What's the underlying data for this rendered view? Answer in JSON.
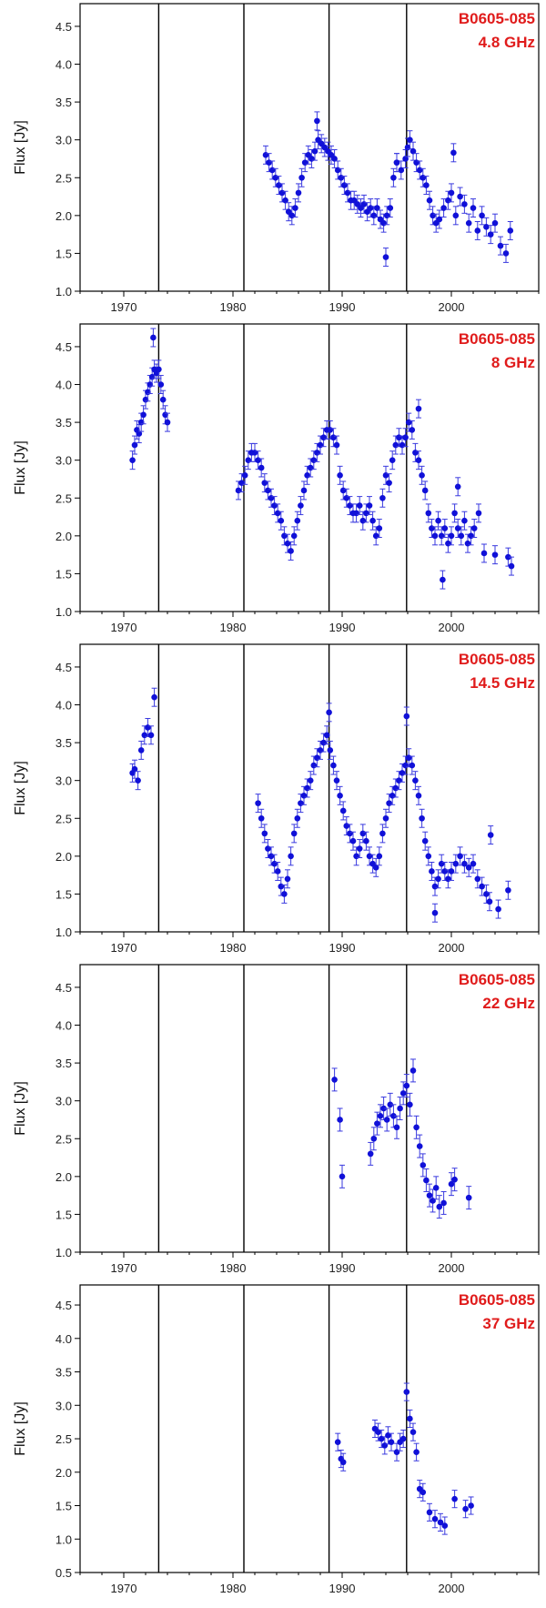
{
  "chart_data": [
    {
      "type": "scatter",
      "title": "B0605-085",
      "subtitle": "4.8 GHz",
      "ylabel": "Flux [Jy]",
      "xlim": [
        1966,
        2008
      ],
      "ylim": [
        1.0,
        4.8
      ],
      "yticks": [
        1.0,
        1.5,
        2.0,
        2.5,
        3.0,
        3.5,
        4.0,
        4.5
      ],
      "xticks": [
        1970,
        1980,
        1990,
        2000
      ],
      "vlines": [
        1973.2,
        1981.0,
        1988.8,
        1995.9
      ],
      "series": [
        {
          "x": [
            1983.0,
            1983.3,
            1983.6,
            1983.9,
            1984.2,
            1984.5,
            1984.8,
            1985.1,
            1985.4,
            1985.7,
            1986.0,
            1986.3,
            1986.6,
            1986.9,
            1987.2,
            1987.5,
            1987.8,
            1988.1,
            1988.4,
            1988.7,
            1989.0,
            1989.3,
            1989.6,
            1989.9,
            1990.2,
            1990.5,
            1990.8,
            1991.1,
            1991.4,
            1991.7,
            1992.0,
            1992.3,
            1992.6,
            1992.9,
            1993.2,
            1993.5,
            1993.8,
            1994.1,
            1994.4,
            1994.7,
            1995.0,
            1995.4,
            1995.8,
            1996.0,
            1996.2,
            1996.5,
            1996.8,
            1997.1,
            1997.4,
            1997.7,
            1998.0,
            1998.3,
            1998.6,
            1998.9,
            1999.3,
            1999.7,
            2000.0,
            2000.4,
            2000.8,
            2001.2,
            2001.6,
            2002.0,
            2002.4,
            2002.8,
            2003.2,
            2003.6,
            2004.0,
            2004.5,
            2005.0,
            2005.4,
            1987.7,
            2000.2,
            1994.0,
            1995.0
          ],
          "y": [
            2.8,
            2.7,
            2.6,
            2.5,
            2.4,
            2.3,
            2.2,
            2.05,
            2.0,
            2.1,
            2.3,
            2.5,
            2.7,
            2.8,
            2.75,
            2.85,
            3.0,
            2.95,
            2.9,
            2.85,
            2.8,
            2.75,
            2.6,
            2.5,
            2.4,
            2.3,
            2.2,
            2.2,
            2.15,
            2.1,
            2.15,
            2.05,
            2.1,
            2.0,
            2.1,
            1.95,
            1.9,
            2.0,
            2.1,
            2.5,
            2.7,
            2.6,
            2.75,
            2.9,
            3.0,
            2.85,
            2.7,
            2.6,
            2.5,
            2.4,
            2.2,
            2.0,
            1.9,
            1.95,
            2.1,
            2.2,
            2.3,
            2.0,
            2.25,
            2.15,
            1.9,
            2.1,
            1.8,
            2.0,
            1.85,
            1.75,
            1.9,
            1.6,
            1.5,
            1.8,
            3.25,
            2.83,
            1.45,
            2.7
          ],
          "yerr": 0.12
        }
      ]
    },
    {
      "type": "scatter",
      "title": "B0605-085",
      "subtitle": "8 GHz",
      "ylabel": "Flux [Jy]",
      "xlim": [
        1966,
        2008
      ],
      "ylim": [
        1.0,
        4.8
      ],
      "yticks": [
        1.0,
        1.5,
        2.0,
        2.5,
        3.0,
        3.5,
        4.0,
        4.5
      ],
      "xticks": [
        1970,
        1980,
        1990,
        2000
      ],
      "vlines": [
        1973.2,
        1981.0,
        1988.8,
        1995.9
      ],
      "series": [
        {
          "x": [
            1970.8,
            1971.0,
            1971.2,
            1971.4,
            1971.6,
            1971.8,
            1972.0,
            1972.2,
            1972.4,
            1972.6,
            1972.8,
            1973.0,
            1973.2,
            1973.4,
            1973.6,
            1973.8,
            1974.0,
            1980.5,
            1980.8,
            1981.1,
            1981.4,
            1981.7,
            1982.0,
            1982.3,
            1982.6,
            1982.9,
            1983.2,
            1983.5,
            1983.8,
            1984.1,
            1984.4,
            1984.7,
            1985.0,
            1985.3,
            1985.6,
            1985.9,
            1986.2,
            1986.5,
            1986.8,
            1987.1,
            1987.4,
            1987.7,
            1988.0,
            1988.3,
            1988.6,
            1988.9,
            1989.2,
            1989.5,
            1989.8,
            1990.1,
            1990.4,
            1990.7,
            1991.0,
            1991.3,
            1991.6,
            1991.9,
            1992.2,
            1992.5,
            1992.8,
            1993.1,
            1993.4,
            1993.7,
            1994.0,
            1994.3,
            1994.6,
            1994.9,
            1995.2,
            1995.5,
            1995.8,
            1996.1,
            1996.4,
            1996.7,
            1997.0,
            1997.3,
            1997.6,
            1997.9,
            1998.2,
            1998.5,
            1998.8,
            1999.1,
            1999.4,
            1999.7,
            2000.0,
            2000.3,
            2000.6,
            2000.9,
            2001.2,
            2001.5,
            2001.8,
            2002.1,
            2002.5,
            2003.0,
            2004.0,
            2005.2,
            2005.5,
            1972.7,
            1997.0,
            1999.2,
            2000.6
          ],
          "y": [
            3.0,
            3.2,
            3.4,
            3.35,
            3.5,
            3.6,
            3.8,
            3.9,
            4.0,
            4.1,
            4.2,
            4.15,
            4.2,
            4.0,
            3.8,
            3.6,
            3.5,
            2.6,
            2.7,
            2.8,
            3.0,
            3.1,
            3.1,
            3.0,
            2.9,
            2.7,
            2.6,
            2.5,
            2.4,
            2.3,
            2.2,
            2.0,
            1.9,
            1.8,
            2.0,
            2.2,
            2.4,
            2.6,
            2.8,
            2.9,
            3.0,
            3.1,
            3.2,
            3.3,
            3.4,
            3.4,
            3.3,
            3.2,
            2.8,
            2.6,
            2.5,
            2.4,
            2.3,
            2.3,
            2.4,
            2.2,
            2.3,
            2.4,
            2.2,
            2.0,
            2.1,
            2.5,
            2.8,
            2.7,
            3.0,
            3.2,
            3.3,
            3.2,
            3.3,
            3.5,
            3.4,
            3.1,
            3.0,
            2.8,
            2.6,
            2.3,
            2.1,
            2.0,
            2.2,
            2.0,
            2.1,
            1.9,
            2.0,
            2.3,
            2.1,
            2.0,
            2.2,
            1.9,
            2.0,
            2.1,
            2.3,
            1.77,
            1.75,
            1.72,
            1.6,
            4.62,
            3.68,
            1.42,
            2.65
          ],
          "yerr": 0.12
        }
      ]
    },
    {
      "type": "scatter",
      "title": "B0605-085",
      "subtitle": "14.5 GHz",
      "ylabel": "Flux [Jy]",
      "xlim": [
        1966,
        2008
      ],
      "ylim": [
        1.0,
        4.8
      ],
      "yticks": [
        1.0,
        1.5,
        2.0,
        2.5,
        3.0,
        3.5,
        4.0,
        4.5
      ],
      "xticks": [
        1970,
        1980,
        1990,
        2000
      ],
      "vlines": [
        1973.2,
        1981.0,
        1988.8,
        1995.9
      ],
      "series": [
        {
          "x": [
            1970.8,
            1971.0,
            1971.3,
            1971.6,
            1971.9,
            1972.2,
            1972.5,
            1972.8,
            1982.3,
            1982.6,
            1982.9,
            1983.2,
            1983.5,
            1983.8,
            1984.1,
            1984.4,
            1984.7,
            1985.0,
            1985.3,
            1985.6,
            1985.9,
            1986.2,
            1986.5,
            1986.8,
            1987.1,
            1987.4,
            1987.7,
            1988.0,
            1988.3,
            1988.6,
            1988.9,
            1989.2,
            1989.5,
            1989.8,
            1990.1,
            1990.4,
            1990.7,
            1991.0,
            1991.3,
            1991.6,
            1991.9,
            1992.2,
            1992.5,
            1992.8,
            1993.1,
            1993.4,
            1993.7,
            1994.0,
            1994.3,
            1994.6,
            1994.9,
            1995.2,
            1995.5,
            1995.8,
            1996.1,
            1996.4,
            1996.7,
            1997.0,
            1997.3,
            1997.6,
            1997.9,
            1998.2,
            1998.5,
            1998.8,
            1999.1,
            1999.4,
            1999.7,
            2000.0,
            2000.4,
            2000.8,
            2001.2,
            2001.6,
            2002.0,
            2002.4,
            2002.8,
            2003.2,
            2003.5,
            2004.3,
            2005.2,
            1988.8,
            1995.9,
            1998.5,
            2003.6
          ],
          "y": [
            3.1,
            3.15,
            3.0,
            3.4,
            3.6,
            3.7,
            3.6,
            4.1,
            2.7,
            2.5,
            2.3,
            2.1,
            2.0,
            1.9,
            1.8,
            1.6,
            1.5,
            1.7,
            2.0,
            2.3,
            2.5,
            2.7,
            2.8,
            2.9,
            3.0,
            3.2,
            3.3,
            3.4,
            3.5,
            3.6,
            3.4,
            3.2,
            3.0,
            2.8,
            2.6,
            2.4,
            2.3,
            2.2,
            2.0,
            2.1,
            2.3,
            2.2,
            2.0,
            1.9,
            1.85,
            2.0,
            2.3,
            2.5,
            2.7,
            2.8,
            2.9,
            3.0,
            3.1,
            3.2,
            3.3,
            3.2,
            3.0,
            2.8,
            2.5,
            2.2,
            2.0,
            1.8,
            1.6,
            1.7,
            1.9,
            1.8,
            1.7,
            1.8,
            1.9,
            2.0,
            1.9,
            1.85,
            1.9,
            1.7,
            1.6,
            1.5,
            1.4,
            1.3,
            1.55,
            3.9,
            3.85,
            1.25,
            2.28
          ],
          "yerr": 0.12
        }
      ]
    },
    {
      "type": "scatter",
      "title": "B0605-085",
      "subtitle": "22 GHz",
      "ylabel": "Flux [Jy]",
      "xlim": [
        1966,
        2008
      ],
      "ylim": [
        1.0,
        4.8
      ],
      "yticks": [
        1.0,
        1.5,
        2.0,
        2.5,
        3.0,
        3.5,
        4.0,
        4.5
      ],
      "xticks": [
        1970,
        1980,
        1990,
        2000
      ],
      "vlines": [
        1973.2,
        1981.0,
        1988.8,
        1995.9
      ],
      "series": [
        {
          "x": [
            1989.3,
            1989.8,
            1990.0,
            1992.6,
            1992.9,
            1993.2,
            1993.5,
            1993.8,
            1994.1,
            1994.4,
            1994.7,
            1995.0,
            1995.3,
            1995.6,
            1995.9,
            1996.2,
            1996.5,
            1996.8,
            1997.1,
            1997.4,
            1997.7,
            1998.0,
            1998.3,
            1998.6,
            1998.9,
            1999.3,
            2000.0,
            2000.3,
            2001.6
          ],
          "y": [
            3.28,
            2.75,
            2.0,
            2.3,
            2.5,
            2.7,
            2.8,
            2.9,
            2.75,
            2.95,
            2.8,
            2.65,
            2.9,
            3.1,
            3.2,
            2.95,
            3.4,
            2.65,
            2.4,
            2.15,
            1.95,
            1.75,
            1.68,
            1.85,
            1.6,
            1.65,
            1.9,
            1.96,
            1.72
          ],
          "yerr": 0.15
        }
      ]
    },
    {
      "type": "scatter",
      "title": "B0605-085",
      "subtitle": "37 GHz",
      "ylabel": "Flux [Jy]",
      "xlim": [
        1966,
        2008
      ],
      "ylim": [
        0.5,
        4.8
      ],
      "yticks": [
        0.5,
        1.0,
        1.5,
        2.0,
        2.5,
        3.0,
        3.5,
        4.0,
        4.5
      ],
      "xticks": [
        1970,
        1980,
        1990,
        2000
      ],
      "vlines": [
        1973.2,
        1981.0,
        1988.8,
        1995.9
      ],
      "series": [
        {
          "x": [
            1989.6,
            1989.9,
            1990.1,
            1993.0,
            1993.3,
            1993.6,
            1993.9,
            1994.2,
            1994.5,
            1995.0,
            1995.3,
            1995.6,
            1995.9,
            1996.2,
            1996.5,
            1996.8,
            1997.1,
            1997.4,
            1998.0,
            1998.5,
            1999.0,
            1999.4,
            2000.3,
            2001.3,
            2001.8
          ],
          "y": [
            2.45,
            2.2,
            2.15,
            2.65,
            2.6,
            2.5,
            2.4,
            2.55,
            2.45,
            2.3,
            2.45,
            2.5,
            3.2,
            2.8,
            2.6,
            2.3,
            1.75,
            1.7,
            1.4,
            1.3,
            1.25,
            1.2,
            1.6,
            1.45,
            1.5
          ],
          "yerr": 0.13
        }
      ]
    }
  ]
}
